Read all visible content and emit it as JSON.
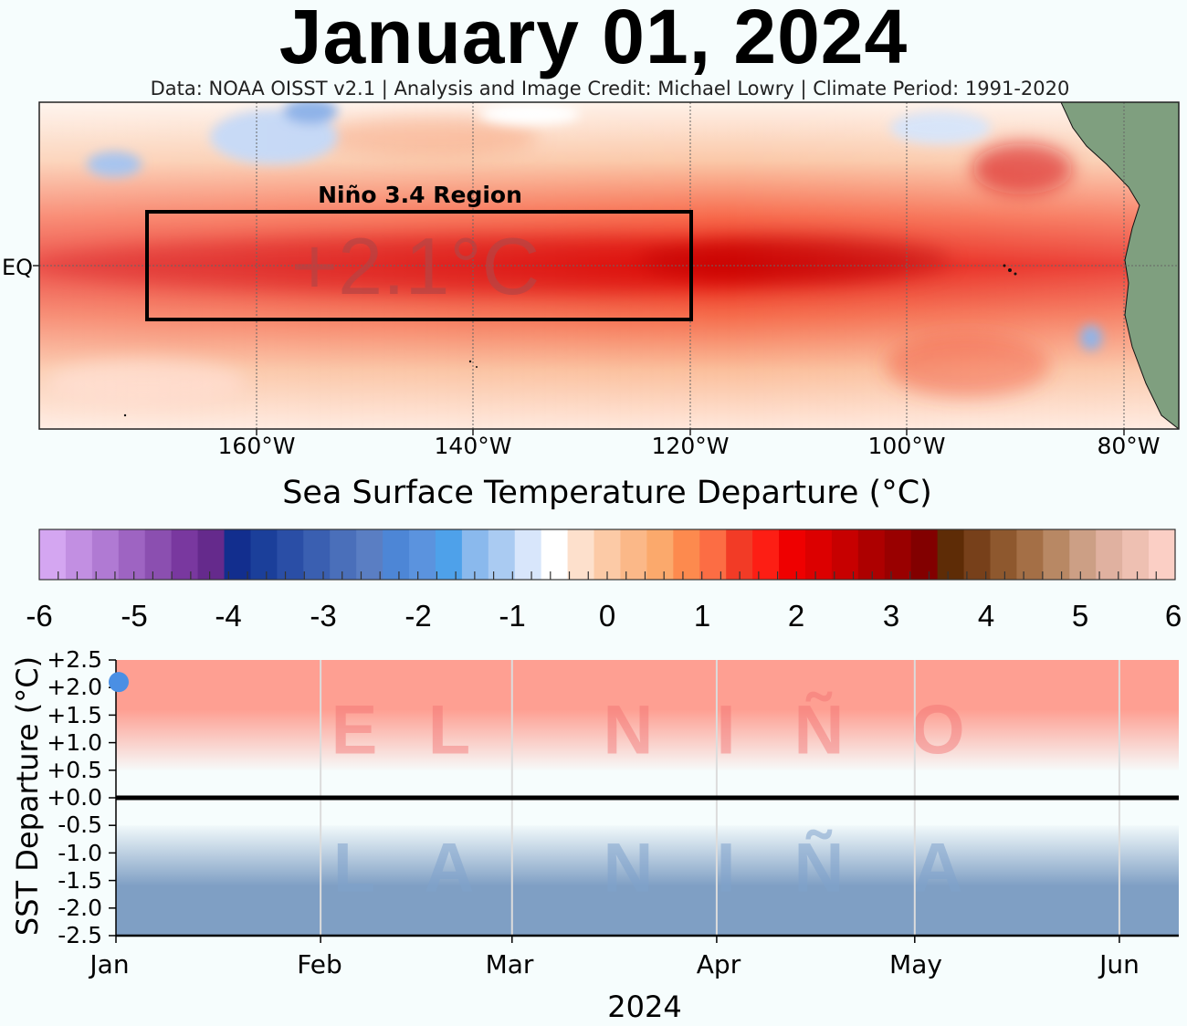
{
  "title": "January 01, 2024",
  "credit": "Data: NOAA OISST v2.1  |  Analysis and Image Credit: Michael Lowry  |  Climate Period: 1991-2020",
  "map": {
    "region_label": "Niño 3.4 Region",
    "region_value": "+2.1°C",
    "equator_label": "EQ",
    "lon_ticks": [
      "160°W",
      "140°W",
      "120°W",
      "100°W",
      "80°W"
    ],
    "land_color": "#7f9f7f"
  },
  "colorbar": {
    "title": "Sea Surface Temperature Departure (°C)",
    "ticks": [
      "-6",
      "-5",
      "-4",
      "-3",
      "-2",
      "-1",
      "0",
      "1",
      "2",
      "3",
      "4",
      "5",
      "6"
    ],
    "colors": [
      "#d4a6f1",
      "#c28fe2",
      "#b07ad3",
      "#9e64c2",
      "#8b4fb0",
      "#79389f",
      "#652a8c",
      "#122e8e",
      "#1b3f9a",
      "#2a4ea6",
      "#3a5fb1",
      "#4a6fba",
      "#5a7ec3",
      "#4d86d6",
      "#5b93de",
      "#4ea1ea",
      "#8ab9ed",
      "#aacbf2",
      "#d8e6fb",
      "#ffffff",
      "#fde0cc",
      "#fccaa6",
      "#fbb888",
      "#fba96c",
      "#fd8a4e",
      "#fc6d44",
      "#f23b26",
      "#fd1e14",
      "#ef0000",
      "#dc0000",
      "#c70000",
      "#ad0000",
      "#990000",
      "#820000",
      "#5e2c06",
      "#77401a",
      "#8e582e",
      "#a46f46",
      "#b88864",
      "#cc9f85",
      "#e0b1a0",
      "#eec0b2",
      "#fbcfc5"
    ]
  },
  "timeseries_text": {
    "ylabel": "SST Departure (°C)",
    "xlabel": "2024",
    "nino_letters": [
      "E",
      "L",
      "",
      "N",
      "I",
      "Ñ",
      "O"
    ],
    "nina_letters": [
      "L",
      "A",
      "",
      "N",
      "I",
      "Ñ",
      "A"
    ]
  },
  "chart_data": {
    "type": "scatter",
    "title": "",
    "xlabel": "2024",
    "ylabel": "SST Departure (°C)",
    "x_ticks": [
      "Jan",
      "Feb",
      "Mar",
      "Apr",
      "May",
      "Jun"
    ],
    "y_ticks": [
      "+2.5",
      "+2.0",
      "+1.5",
      "+1.0",
      "+0.5",
      "+0.0",
      "-0.5",
      "-1.0",
      "-1.5",
      "-2.0",
      "-2.5"
    ],
    "ylim": [
      -2.5,
      2.5
    ],
    "xlim": [
      "2024-01-01",
      "2024-06-10"
    ],
    "month_starts": [
      "2024-01-01",
      "2024-02-01",
      "2024-03-01",
      "2024-04-01",
      "2024-05-01",
      "2024-06-01"
    ],
    "points": [
      {
        "x": "2024-01-01",
        "y": 2.1
      }
    ],
    "point_color": "#4a8fe4",
    "el_nino_color": "#fe9f92",
    "la_nina_color": "#7f9fc4",
    "grid": true
  }
}
